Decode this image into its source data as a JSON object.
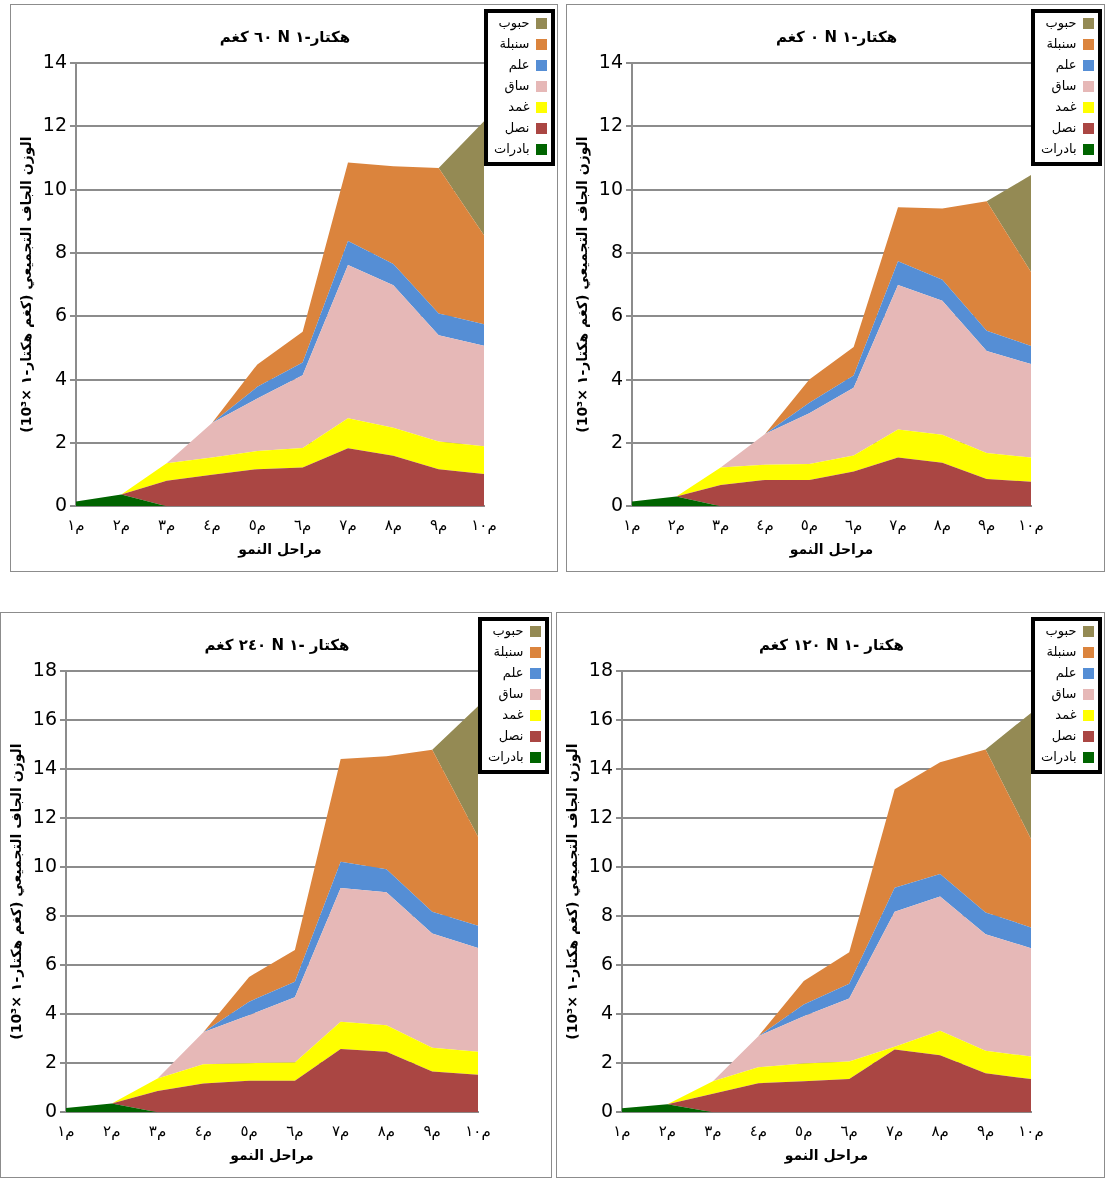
{
  "chart_data": [
    {
      "type": "area",
      "title": "٦٠ كغم N هكتار-١",
      "xlabel": "مراحل النمو",
      "ylabel": "الوزن الجاف التجميعي (كغم هكتار-١ ×10³)",
      "stacked": true,
      "grid": "y",
      "legend": "top right",
      "categories": [
        "م١",
        "م٢",
        "م٣",
        "م٤",
        "م٥",
        "م٦",
        "م٧",
        "م٨",
        "م٩",
        "م١٠"
      ],
      "ylim": [
        0,
        14
      ],
      "yticks": [
        0,
        2,
        4,
        6,
        8,
        10,
        12,
        14
      ],
      "series": [
        {
          "name": "بادرات",
          "color": "#006400",
          "values": [
            0.15,
            0.37,
            0,
            0,
            0,
            0,
            0,
            0,
            0,
            0
          ]
        },
        {
          "name": "نصل",
          "color": "#aa4643",
          "values": [
            0,
            0,
            0.8,
            0.99,
            1.17,
            1.22,
            1.83,
            1.59,
            1.17,
            1.02
          ]
        },
        {
          "name": "غمد",
          "color": "#ffff00",
          "values": [
            0,
            0,
            0.56,
            0.55,
            0.57,
            0.62,
            0.95,
            0.89,
            0.87,
            0.87
          ]
        },
        {
          "name": "ساق",
          "color": "#e6b8b7",
          "values": [
            0,
            0,
            0,
            1.09,
            1.66,
            2.3,
            4.84,
            4.5,
            3.36,
            3.18
          ]
        },
        {
          "name": "علم",
          "color": "#558ed5",
          "values": [
            0,
            0,
            0,
            0,
            0.37,
            0.4,
            0.76,
            0.67,
            0.69,
            0.68
          ]
        },
        {
          "name": "سنبلة",
          "color": "#db843d",
          "values": [
            0,
            0,
            0,
            0,
            0.71,
            0.97,
            2.48,
            3.09,
            4.59,
            2.81
          ]
        },
        {
          "name": "حبوب",
          "color": "#948a54",
          "values": [
            0,
            0,
            0,
            0,
            0,
            0,
            0,
            0,
            0,
            3.6
          ]
        }
      ]
    },
    {
      "type": "area",
      "title": "٠ كغم N هكتار-١",
      "xlabel": "مراحل النمو",
      "ylabel": "الوزن الجاف التجميعي (كغم هكتار-١ ×10³)",
      "stacked": true,
      "grid": "y",
      "legend": "top right",
      "categories": [
        "م١",
        "م٢",
        "م٣",
        "م٤",
        "م٥",
        "م٦",
        "م٧",
        "م٨",
        "م٩",
        "م١٠"
      ],
      "ylim": [
        0,
        14
      ],
      "yticks": [
        0,
        2,
        4,
        6,
        8,
        10,
        12,
        14
      ],
      "series": [
        {
          "name": "بادرات",
          "color": "#006400",
          "values": [
            0.15,
            0.31,
            0,
            0,
            0,
            0,
            0,
            0,
            0,
            0
          ]
        },
        {
          "name": "نصل",
          "color": "#aa4643",
          "values": [
            0,
            0,
            0.67,
            0.83,
            0.83,
            1.1,
            1.54,
            1.37,
            0.86,
            0.77
          ]
        },
        {
          "name": "غمد",
          "color": "#ffff00",
          "values": [
            0,
            0,
            0.55,
            0.48,
            0.5,
            0.5,
            0.88,
            0.89,
            0.82,
            0.77
          ]
        },
        {
          "name": "ساق",
          "color": "#e6b8b7",
          "values": [
            0,
            0,
            0,
            0.97,
            1.61,
            2.14,
            4.57,
            4.23,
            3.22,
            2.95
          ]
        },
        {
          "name": "علم",
          "color": "#558ed5",
          "values": [
            0,
            0,
            0,
            0,
            0.33,
            0.39,
            0.75,
            0.66,
            0.64,
            0.57
          ]
        },
        {
          "name": "سنبلة",
          "color": "#db843d",
          "values": [
            0,
            0,
            0,
            0,
            0.73,
            0.9,
            1.7,
            2.25,
            4.09,
            2.34
          ]
        },
        {
          "name": "حبوب",
          "color": "#948a54",
          "values": [
            0,
            0,
            0,
            0,
            0,
            0,
            0,
            0,
            0,
            3.06
          ]
        }
      ]
    },
    {
      "type": "area",
      "title": "٢٤٠ كغم N هكتار -١",
      "xlabel": "مراحل النمو",
      "ylabel": "الوزن الجاف التجميعي (كغم هكتار-١ ×10³)",
      "stacked": true,
      "grid": "y",
      "legend": "top right",
      "categories": [
        "م١",
        "م٢",
        "م٣",
        "م٤",
        "م٥",
        "م٦",
        "م٧",
        "م٨",
        "م٩",
        "م١٠"
      ],
      "ylim": [
        0,
        18
      ],
      "yticks": [
        0,
        2,
        4,
        6,
        8,
        10,
        12,
        14,
        16,
        18
      ],
      "series": [
        {
          "name": "بادرات",
          "color": "#006400",
          "values": [
            0.17,
            0.36,
            0,
            0,
            0,
            0,
            0,
            0,
            0,
            0
          ]
        },
        {
          "name": "نصل",
          "color": "#aa4643",
          "values": [
            0,
            0,
            0.86,
            1.17,
            1.28,
            1.28,
            2.58,
            2.47,
            1.66,
            1.53
          ]
        },
        {
          "name": "غمد",
          "color": "#ffff00",
          "values": [
            0,
            0,
            0.52,
            0.79,
            0.72,
            0.75,
            1.11,
            1.08,
            0.97,
            0.94
          ]
        },
        {
          "name": "ساق",
          "color": "#e6b8b7",
          "values": [
            0,
            0,
            0,
            1.3,
            1.96,
            2.66,
            5.46,
            5.42,
            4.66,
            4.23
          ]
        },
        {
          "name": "علم",
          "color": "#558ed5",
          "values": [
            0,
            0,
            0,
            0,
            0.55,
            0.63,
            1.07,
            0.94,
            0.89,
            0.91
          ]
        },
        {
          "name": "سنبلة",
          "color": "#db843d",
          "values": [
            0,
            0,
            0,
            0,
            1.01,
            1.3,
            4.19,
            4.61,
            6.61,
            3.63
          ]
        },
        {
          "name": "حبوب",
          "color": "#948a54",
          "values": [
            0,
            0,
            0,
            0,
            0,
            0,
            0,
            0,
            0,
            5.32
          ]
        }
      ]
    },
    {
      "type": "area",
      "title": "١٢٠ كغم N هكتار -١",
      "xlabel": "مراحل النمو",
      "ylabel": "الوزن الجاف التجميعي (كغم هكتار-١ ×10³)",
      "stacked": true,
      "grid": "y",
      "legend": "top right",
      "categories": [
        "م١",
        "م٢",
        "م٣",
        "م٤",
        "م٥",
        "م٦",
        "م٧",
        "م٨",
        "م٩",
        "م١٠"
      ],
      "ylim": [
        0,
        18
      ],
      "yticks": [
        0,
        2,
        4,
        6,
        8,
        10,
        12,
        14,
        16,
        18
      ],
      "series": [
        {
          "name": "بادرات",
          "color": "#006400",
          "values": [
            0.16,
            0.32,
            0,
            0,
            0,
            0,
            0,
            0,
            0,
            0
          ]
        },
        {
          "name": "نصل",
          "color": "#aa4643",
          "values": [
            0,
            0,
            0.75,
            1.18,
            1.26,
            1.35,
            2.56,
            2.32,
            1.59,
            1.35
          ]
        },
        {
          "name": "غمد",
          "color": "#ffff00",
          "values": [
            0,
            0,
            0.51,
            0.65,
            0.73,
            0.72,
            0.11,
            1.0,
            0.92,
            0.92
          ]
        },
        {
          "name": "ساق",
          "color": "#e6b8b7",
          "values": [
            0,
            0,
            0,
            1.27,
            1.92,
            2.57,
            5.51,
            5.48,
            4.75,
            4.42
          ]
        },
        {
          "name": "علم",
          "color": "#558ed5",
          "values": [
            0,
            0,
            0,
            0,
            0.48,
            0.6,
            0.98,
            0.92,
            0.89,
            0.85
          ]
        },
        {
          "name": "سنبلة",
          "color": "#db843d",
          "values": [
            0,
            0,
            0,
            0,
            0.96,
            1.29,
            4.02,
            4.56,
            6.65,
            3.61
          ]
        },
        {
          "name": "حبوب",
          "color": "#948a54",
          "values": [
            0,
            0,
            0,
            0,
            0,
            0,
            0,
            0,
            0,
            5.14
          ]
        }
      ]
    }
  ]
}
